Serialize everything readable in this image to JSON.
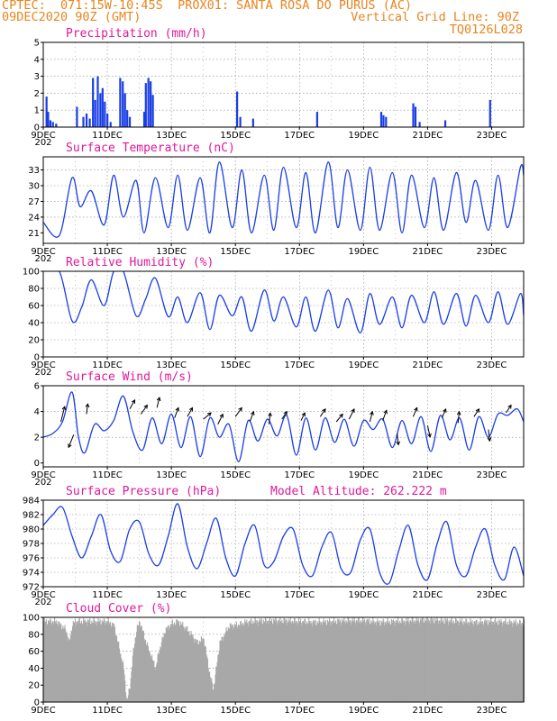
{
  "header": {
    "line1": "CPTEC:  071:15W-10:45S  PROX01: SANTA ROSA DO PURUS (AC)",
    "line2_left": "09DEC2020 90Z (GMT)",
    "line2_right": "Vertical Grid Line: 90Z",
    "line3_right": "TQ0126L028"
  },
  "colors": {
    "header": "#e8851f",
    "title": "#e0199a",
    "series": "#1a3ee6",
    "cloud": "#a8a8a8",
    "grid": "#888888"
  },
  "x_tick_labels": [
    "9DEC",
    "11DEC",
    "13DEC",
    "15DEC",
    "17DEC",
    "19DEC",
    "21DEC",
    "23DEC"
  ],
  "x_overlap_label": "202",
  "chart_data": [
    {
      "type": "bar",
      "title": "Precipitation (mm/h)",
      "ylim": [
        0,
        5
      ],
      "yticks": [
        0,
        1,
        2,
        3,
        4,
        5
      ],
      "x_unit": "days since 9DEC 00Z",
      "x_range": [
        0,
        15
      ],
      "bars": [
        [
          0.1,
          1.8
        ],
        [
          0.15,
          0.9
        ],
        [
          0.22,
          0.4
        ],
        [
          0.3,
          0.3
        ],
        [
          0.4,
          0.2
        ],
        [
          1.05,
          1.2
        ],
        [
          1.25,
          0.6
        ],
        [
          1.35,
          0.8
        ],
        [
          1.45,
          0.5
        ],
        [
          1.55,
          2.9
        ],
        [
          1.62,
          1.6
        ],
        [
          1.7,
          3.0
        ],
        [
          1.78,
          2.0
        ],
        [
          1.85,
          2.3
        ],
        [
          1.92,
          1.5
        ],
        [
          2.0,
          0.8
        ],
        [
          2.1,
          0.3
        ],
        [
          2.4,
          2.9
        ],
        [
          2.48,
          2.7
        ],
        [
          2.55,
          2.0
        ],
        [
          2.62,
          1.0
        ],
        [
          2.7,
          0.6
        ],
        [
          3.15,
          0.9
        ],
        [
          3.2,
          2.6
        ],
        [
          3.28,
          2.9
        ],
        [
          3.35,
          2.7
        ],
        [
          3.42,
          1.9
        ],
        [
          6.05,
          2.1
        ],
        [
          6.15,
          0.6
        ],
        [
          6.55,
          0.5
        ],
        [
          8.55,
          0.9
        ],
        [
          10.55,
          0.9
        ],
        [
          10.62,
          0.7
        ],
        [
          10.7,
          0.6
        ],
        [
          11.55,
          1.4
        ],
        [
          11.62,
          1.2
        ],
        [
          11.75,
          0.3
        ],
        [
          12.55,
          0.4
        ],
        [
          13.95,
          1.6
        ]
      ],
      "bar_values_note": ""
    },
    {
      "type": "line",
      "title": "Surface Temperature (nC)",
      "ylim": [
        19,
        35.5
      ],
      "yticks": [
        21,
        24,
        27,
        30,
        33
      ],
      "x_range": [
        0,
        15
      ],
      "x": [
        0,
        0.5,
        0.9,
        1.15,
        1.5,
        1.9,
        2.2,
        2.5,
        2.9,
        3.15,
        3.5,
        3.9,
        4.2,
        4.5,
        4.9,
        5.2,
        5.5,
        5.9,
        6.2,
        6.5,
        6.9,
        7.2,
        7.5,
        7.9,
        8.2,
        8.5,
        8.9,
        9.2,
        9.5,
        9.9,
        10.2,
        10.5,
        10.9,
        11.2,
        11.5,
        11.9,
        12.2,
        12.5,
        12.9,
        13.2,
        13.5,
        13.9,
        14.2,
        14.5,
        14.9,
        15
      ],
      "y": [
        23,
        20.5,
        31.5,
        26,
        29,
        22.5,
        32,
        24,
        31,
        21,
        31.5,
        22,
        32,
        21.5,
        31.5,
        21,
        34.5,
        22,
        33,
        21,
        32,
        21.5,
        33.5,
        22,
        32.5,
        21,
        34.5,
        22,
        33,
        21.5,
        33.5,
        21.5,
        32.5,
        21,
        32,
        22,
        31.5,
        21.5,
        32.5,
        23,
        31,
        21.5,
        32,
        22,
        33.5,
        32
      ]
    },
    {
      "type": "line",
      "title": "Relative Humidity (%)",
      "ylim": [
        0,
        100
      ],
      "yticks": [
        0,
        20,
        40,
        60,
        80,
        100
      ],
      "x_range": [
        0,
        15
      ],
      "x": [
        0,
        0.5,
        0.9,
        1.2,
        1.5,
        1.9,
        2.2,
        2.5,
        2.9,
        3.2,
        3.5,
        3.9,
        4.2,
        4.5,
        4.9,
        5.2,
        5.5,
        5.9,
        6.2,
        6.5,
        6.9,
        7.2,
        7.5,
        7.9,
        8.2,
        8.5,
        8.9,
        9.2,
        9.5,
        9.9,
        10.2,
        10.5,
        10.9,
        11.2,
        11.5,
        11.9,
        12.2,
        12.5,
        12.9,
        13.2,
        13.5,
        13.9,
        14.2,
        14.5,
        14.9,
        15
      ],
      "y": [
        100,
        100,
        42,
        58,
        90,
        60,
        100,
        100,
        48,
        68,
        92,
        47,
        70,
        40,
        75,
        32,
        72,
        48,
        70,
        30,
        78,
        42,
        70,
        35,
        70,
        30,
        78,
        34,
        68,
        28,
        74,
        38,
        70,
        34,
        72,
        40,
        76,
        38,
        74,
        36,
        72,
        40,
        76,
        38,
        74,
        48
      ]
    },
    {
      "type": "line",
      "title": "Surface Wind (m/s)",
      "ylim": [
        -0.3,
        6
      ],
      "yticks": [
        0,
        2,
        4,
        6
      ],
      "x_range": [
        0,
        15
      ],
      "x": [
        0,
        0.3,
        0.6,
        0.9,
        1.1,
        1.3,
        1.6,
        1.9,
        2.2,
        2.5,
        2.8,
        3.1,
        3.4,
        3.7,
        4.0,
        4.3,
        4.6,
        4.9,
        5.2,
        5.5,
        5.8,
        6.1,
        6.4,
        6.7,
        7.0,
        7.3,
        7.6,
        7.9,
        8.2,
        8.5,
        8.8,
        9.1,
        9.4,
        9.7,
        10.0,
        10.3,
        10.6,
        10.9,
        11.2,
        11.5,
        11.8,
        12.1,
        12.4,
        12.7,
        13.0,
        13.3,
        13.6,
        13.9,
        14.2,
        14.5,
        14.8,
        15
      ],
      "y": [
        2.0,
        2.3,
        3.2,
        5.5,
        2.0,
        0.8,
        3.0,
        2.5,
        3.3,
        5.2,
        2.4,
        1.0,
        3.5,
        1.5,
        3.8,
        1.2,
        3.6,
        0.5,
        3.5,
        2.0,
        3.0,
        0.1,
        3.3,
        1.7,
        3.4,
        2.1,
        3.7,
        0.6,
        3.5,
        1.0,
        3.5,
        1.6,
        3.4,
        1.3,
        3.3,
        2.6,
        3.4,
        1.2,
        3.3,
        1.5,
        3.6,
        0.9,
        3.7,
        1.8,
        3.5,
        1.0,
        3.6,
        2.0,
        3.8,
        3.7,
        4.2,
        3.2
      ],
      "arrows": [
        [
          0.55,
          3.2,
          0.3,
          1.2
        ],
        [
          0.95,
          2.2,
          -0.4,
          -1.0
        ],
        [
          1.35,
          3.8,
          0.1,
          0.8
        ],
        [
          2.7,
          4.2,
          0.4,
          0.7
        ],
        [
          3.05,
          3.8,
          0.5,
          0.7
        ],
        [
          3.55,
          4.3,
          0.2,
          0.8
        ],
        [
          4.1,
          3.5,
          0.3,
          0.8
        ],
        [
          4.5,
          3.6,
          0.4,
          0.7
        ],
        [
          5.0,
          3.4,
          0.6,
          0.5
        ],
        [
          5.45,
          3.0,
          0.4,
          0.8
        ],
        [
          6.0,
          3.6,
          0.5,
          0.7
        ],
        [
          6.45,
          3.2,
          0.3,
          0.8
        ],
        [
          7.05,
          3.0,
          0.1,
          0.9
        ],
        [
          7.45,
          3.4,
          0.4,
          0.6
        ],
        [
          8.05,
          3.3,
          0.3,
          0.6
        ],
        [
          8.65,
          3.6,
          0.4,
          0.6
        ],
        [
          9.15,
          3.2,
          0.5,
          0.6
        ],
        [
          9.55,
          3.4,
          0.4,
          0.8
        ],
        [
          10.2,
          3.2,
          0.2,
          0.8
        ],
        [
          10.6,
          3.3,
          0.3,
          0.8
        ],
        [
          11.05,
          2.3,
          0.1,
          -0.9
        ],
        [
          11.55,
          3.6,
          0.3,
          0.7
        ],
        [
          12.0,
          2.9,
          0.2,
          -0.9
        ],
        [
          12.45,
          3.5,
          0.3,
          0.7
        ],
        [
          12.95,
          3.1,
          0.1,
          0.9
        ],
        [
          13.45,
          3.6,
          0.4,
          0.6
        ],
        [
          13.9,
          2.6,
          0.1,
          -0.9
        ],
        [
          14.45,
          3.9,
          0.4,
          0.6
        ]
      ]
    },
    {
      "type": "line",
      "title": "Surface Pressure (hPa)",
      "annotation": "Model Altitude: 262.222  m",
      "ylim": [
        972,
        984
      ],
      "yticks": [
        972,
        974,
        976,
        978,
        980,
        982,
        984
      ],
      "x_range": [
        0,
        15
      ],
      "x": [
        0,
        0.3,
        0.6,
        0.9,
        1.2,
        1.5,
        1.8,
        2.1,
        2.4,
        2.7,
        3.0,
        3.3,
        3.6,
        3.9,
        4.2,
        4.5,
        4.8,
        5.1,
        5.4,
        5.7,
        6.0,
        6.3,
        6.6,
        6.9,
        7.2,
        7.5,
        7.8,
        8.1,
        8.4,
        8.7,
        9.0,
        9.3,
        9.6,
        9.9,
        10.2,
        10.5,
        10.8,
        11.1,
        11.4,
        11.7,
        12.0,
        12.3,
        12.6,
        12.9,
        13.2,
        13.5,
        13.8,
        14.1,
        14.4,
        14.7,
        15
      ],
      "y": [
        980.5,
        982,
        983,
        979,
        976,
        979,
        982,
        977,
        975.5,
        980,
        981,
        976.5,
        975,
        979,
        983.5,
        977.5,
        974.5,
        978,
        981.5,
        976,
        973.5,
        978,
        980.5,
        975,
        975.5,
        979,
        980,
        975,
        973.5,
        977.5,
        979.5,
        974.5,
        974,
        978.5,
        980,
        974,
        972.5,
        977,
        980.5,
        975,
        973,
        978,
        981,
        975,
        973.5,
        977.5,
        980,
        975,
        973,
        977.5,
        973.5
      ]
    },
    {
      "type": "area",
      "title": "Cloud Cover (%)",
      "ylim": [
        0,
        100
      ],
      "yticks": [
        0,
        20,
        40,
        60,
        80,
        100
      ],
      "x_range": [
        0,
        15
      ],
      "x": [
        0,
        0.4,
        0.7,
        0.8,
        0.9,
        1.0,
        1.2,
        1.5,
        1.8,
        2.0,
        2.2,
        2.5,
        2.6,
        2.7,
        2.8,
        2.9,
        3.0,
        3.2,
        3.5,
        3.6,
        3.8,
        4.0,
        4.2,
        4.5,
        4.8,
        5.0,
        5.2,
        5.3,
        5.5,
        5.8,
        6.0,
        6.3,
        6.5,
        7.0,
        7.5,
        8.0,
        8.5,
        9.0,
        9.5,
        10.0,
        10.5,
        11.0,
        11.5,
        12.0,
        12.5,
        13.0,
        13.5,
        14.0,
        14.5,
        15
      ],
      "y": [
        95,
        95,
        85,
        70,
        92,
        95,
        95,
        95,
        95,
        95,
        90,
        40,
        0,
        20,
        60,
        85,
        95,
        70,
        40,
        60,
        85,
        92,
        95,
        85,
        70,
        75,
        30,
        15,
        70,
        90,
        90,
        94,
        95,
        96,
        96,
        95,
        94,
        95,
        96,
        96,
        94,
        95,
        96,
        97,
        96,
        95,
        94,
        95,
        94,
        93
      ]
    }
  ]
}
